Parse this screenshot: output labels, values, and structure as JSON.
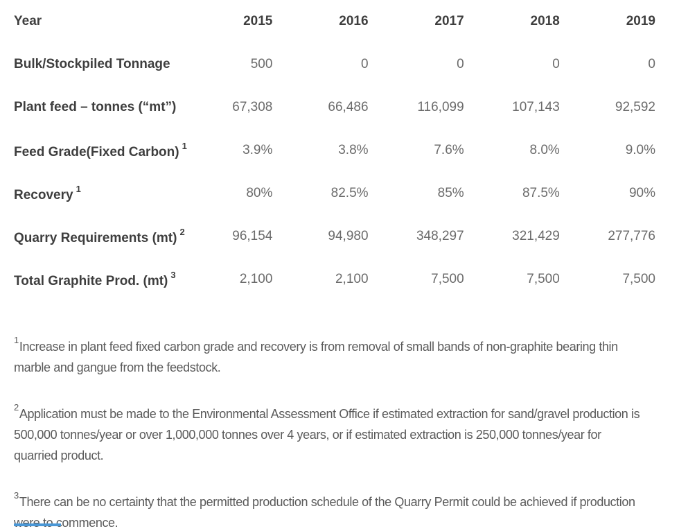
{
  "table": {
    "header_label": "Year",
    "years": [
      "2015",
      "2016",
      "2017",
      "2018",
      "2019"
    ],
    "rows": [
      {
        "label": "Bulk/Stockpiled Tonnage",
        "sup": "",
        "values": [
          "500",
          "0",
          "0",
          "0",
          "0"
        ]
      },
      {
        "label": "Plant feed – tonnes (“mt”)",
        "sup": "",
        "values": [
          "67,308",
          "66,486",
          "116,099",
          "107,143",
          "92,592"
        ]
      },
      {
        "label": "Feed Grade(Fixed Carbon)",
        "sup": "1",
        "values": [
          "3.9%",
          "3.8%",
          "7.6%",
          "8.0%",
          "9.0%"
        ]
      },
      {
        "label": "Recovery",
        "sup": "1",
        "values": [
          "80%",
          "82.5%",
          "85%",
          "87.5%",
          "90%"
        ]
      },
      {
        "label": "Quarry Requirements (mt)",
        "sup": "2",
        "values": [
          "96,154",
          "94,980",
          "348,297",
          "321,429",
          "277,776"
        ]
      },
      {
        "label": "Total Graphite Prod. (mt)",
        "sup": "3",
        "values": [
          "2,100",
          "2,100",
          "7,500",
          "7,500",
          "7,500"
        ]
      }
    ]
  },
  "footnotes": [
    {
      "marker": "1",
      "text": "Increase in plant feed fixed carbon grade and recovery is from removal of small bands of non-graphite bearing thin marble and gangue from the feedstock."
    },
    {
      "marker": "2",
      "text": "Application must be made to the Environmental Assessment Office if estimated extraction for sand/gravel production is 500,000 tonnes/year or over 1,000,000 tonnes over 4 years, or if estimated extraction is 250,000 tonnes/year for quarried product."
    },
    {
      "marker": "3",
      "text": "There can be no certainty that the permitted production schedule of the Quarry Permit could be achieved if production were to commence."
    }
  ],
  "colors": {
    "label_text": "#3e3e3e",
    "value_text": "#6b6b6b",
    "footnote_text": "#5a5a5a",
    "accent_blue": "#4a97d6"
  }
}
